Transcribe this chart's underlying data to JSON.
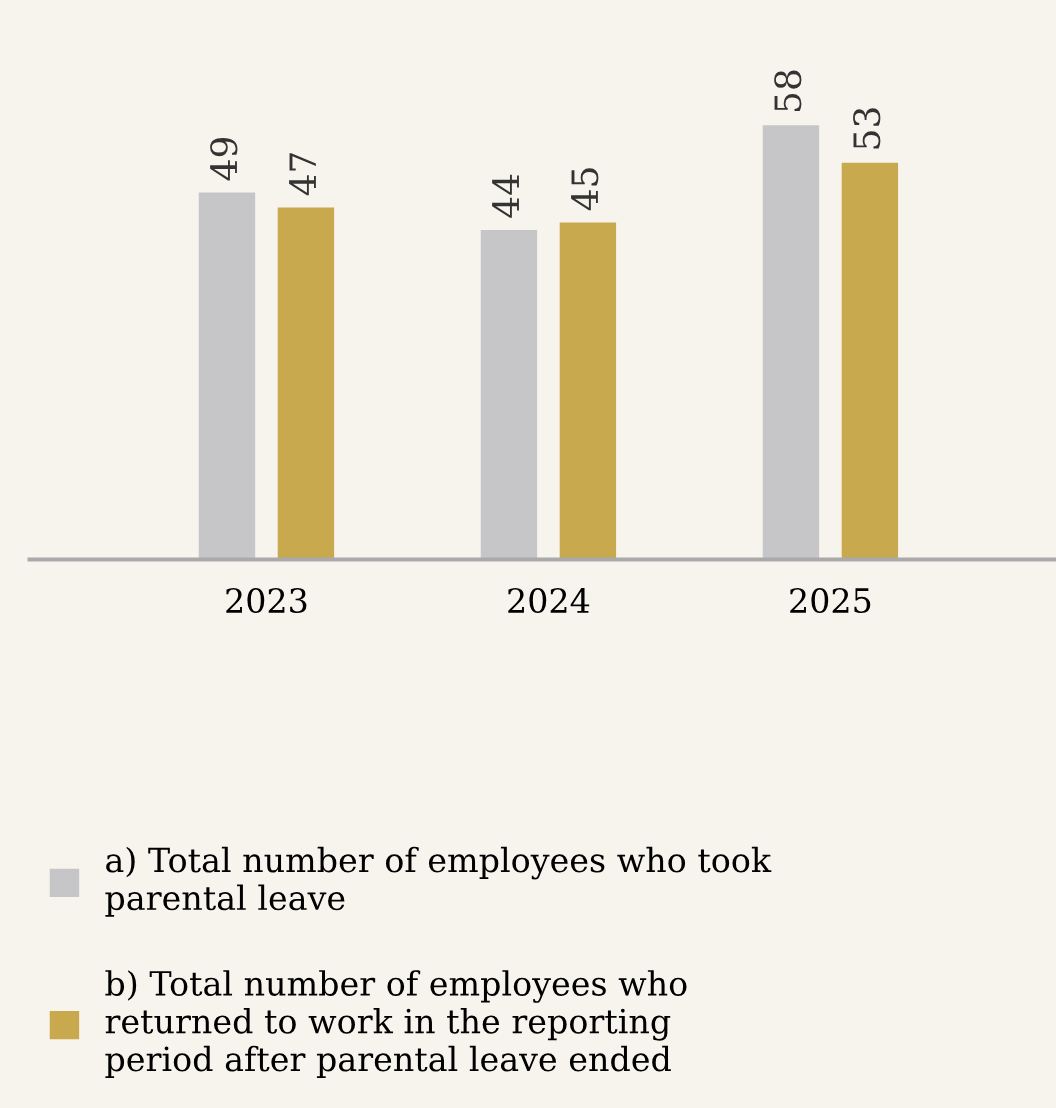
{
  "chart_data": {
    "type": "bar",
    "categories": [
      "2023",
      "2024",
      "2025"
    ],
    "series": [
      {
        "name": "a) Total number of employees who took\nparental leave",
        "color": "#c6c6c8",
        "values": [
          49,
          44,
          58
        ]
      },
      {
        "name": "b) Total number of employees who\nreturned to work in the reporting\nperiod after parental leave ended",
        "color": "#c9a94e",
        "values": [
          47,
          45,
          53
        ]
      }
    ],
    "data_labels": true,
    "legend": "bottom",
    "grid": false
  }
}
